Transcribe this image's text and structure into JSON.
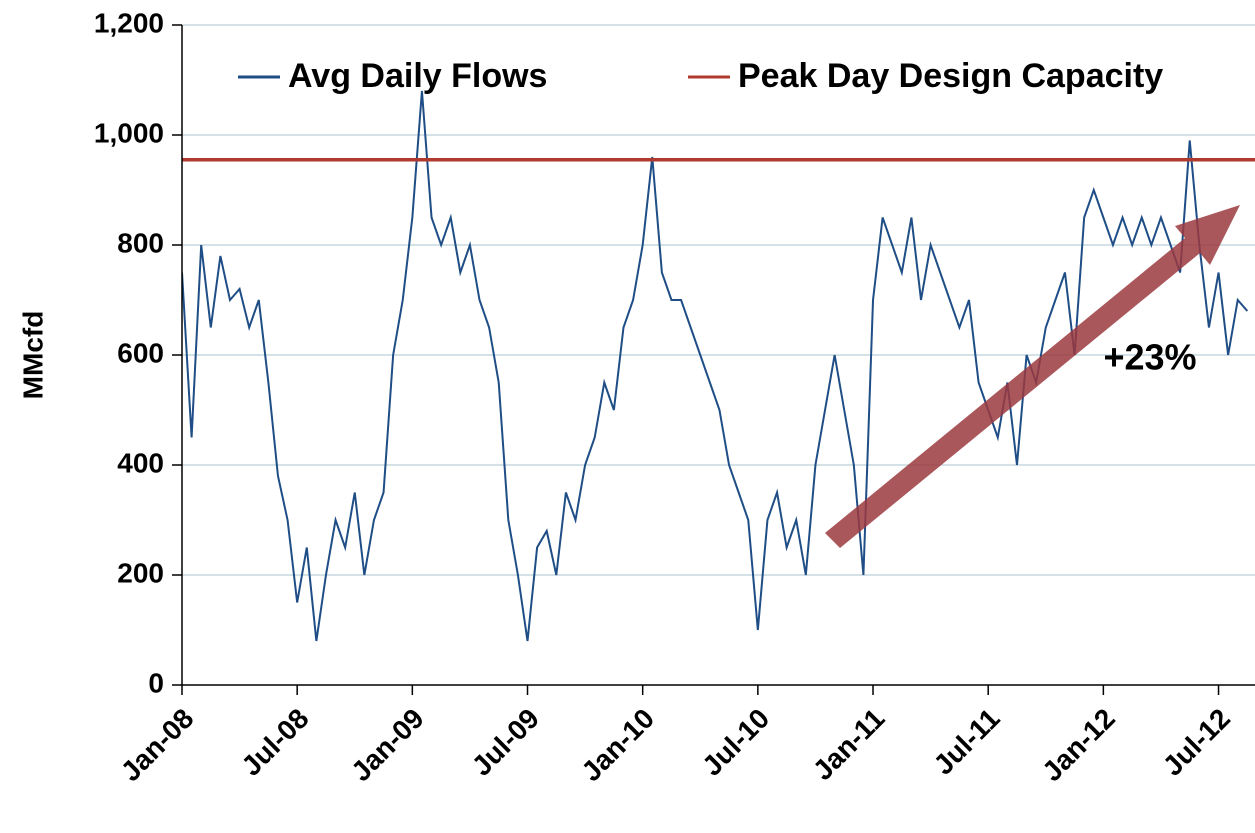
{
  "chart_data": {
    "type": "line",
    "y_label": "MMcfd",
    "annotation": "+23%",
    "xlim": [
      0,
      55.9
    ],
    "xticks": [
      {
        "value": 0,
        "label": "Jan-08"
      },
      {
        "value": 6,
        "label": "Jul-08"
      },
      {
        "value": 12,
        "label": "Jan-09"
      },
      {
        "value": 18,
        "label": "Jul-09"
      },
      {
        "value": 24,
        "label": "Jan-10"
      },
      {
        "value": 30,
        "label": "Jul-10"
      },
      {
        "value": 36,
        "label": "Jan-11"
      },
      {
        "value": 42,
        "label": "Jul-11"
      },
      {
        "value": 48,
        "label": "Jan-12"
      },
      {
        "value": 54,
        "label": "Jul-12"
      }
    ],
    "ylim": [
      0,
      1200
    ],
    "yticks": [
      {
        "value": 0,
        "label": "0"
      },
      {
        "value": 200,
        "label": "200"
      },
      {
        "value": 400,
        "label": "400"
      },
      {
        "value": 600,
        "label": "600"
      },
      {
        "value": 800,
        "label": "800"
      },
      {
        "value": 1000,
        "label": "1,000"
      },
      {
        "value": 1200,
        "label": "1,200"
      }
    ],
    "grid": true,
    "legend": "top",
    "series": [
      {
        "name": "Avg Daily Flows",
        "color": "#1f4e86",
        "x": [
          0,
          0.5,
          1,
          1.5,
          2,
          2.5,
          3,
          3.5,
          4,
          4.5,
          5,
          5.5,
          6,
          6.5,
          7,
          7.5,
          8,
          8.5,
          9,
          9.5,
          10,
          10.5,
          11,
          11.5,
          12,
          12.5,
          13,
          13.5,
          14,
          14.5,
          15,
          15.5,
          16,
          16.5,
          17,
          17.5,
          18,
          18.5,
          19,
          19.5,
          20,
          20.5,
          21,
          21.5,
          22,
          22.5,
          23,
          23.5,
          24,
          24.5,
          25,
          25.5,
          26,
          26.5,
          27,
          27.5,
          28,
          28.5,
          29,
          29.5,
          30,
          30.5,
          31,
          31.5,
          32,
          32.5,
          33,
          33.5,
          34,
          34.5,
          35,
          35.5,
          36,
          36.5,
          37,
          37.5,
          38,
          38.5,
          39,
          39.5,
          40,
          40.5,
          41,
          41.5,
          42,
          42.5,
          43,
          43.5,
          44,
          44.5,
          45,
          45.5,
          46,
          46.5,
          47,
          47.5,
          48,
          48.5,
          49,
          49.5,
          50,
          50.5,
          51,
          51.5,
          52,
          52.5,
          53,
          53.5,
          54,
          54.5,
          55,
          55.5
        ],
        "values": [
          750,
          450,
          800,
          650,
          780,
          700,
          720,
          650,
          700,
          550,
          380,
          300,
          150,
          250,
          80,
          200,
          300,
          250,
          350,
          200,
          300,
          350,
          600,
          700,
          850,
          1080,
          850,
          800,
          850,
          750,
          800,
          700,
          650,
          550,
          300,
          200,
          80,
          250,
          280,
          200,
          350,
          300,
          400,
          450,
          550,
          500,
          650,
          700,
          800,
          960,
          750,
          700,
          700,
          650,
          600,
          550,
          500,
          400,
          350,
          300,
          100,
          300,
          350,
          250,
          300,
          200,
          400,
          500,
          600,
          500,
          400,
          200,
          700,
          850,
          800,
          750,
          850,
          700,
          800,
          750,
          700,
          650,
          700,
          550,
          500,
          450,
          550,
          400,
          600,
          550,
          650,
          700,
          750,
          600,
          850,
          900,
          850,
          800,
          850,
          800,
          850,
          800,
          850,
          800,
          750,
          990,
          800,
          650,
          750,
          600,
          700,
          680
        ]
      },
      {
        "name": "Peak Day Design Capacity",
        "color": "#b03a2e",
        "x": [
          0,
          55.9
        ],
        "values": [
          955,
          955
        ]
      }
    ]
  }
}
